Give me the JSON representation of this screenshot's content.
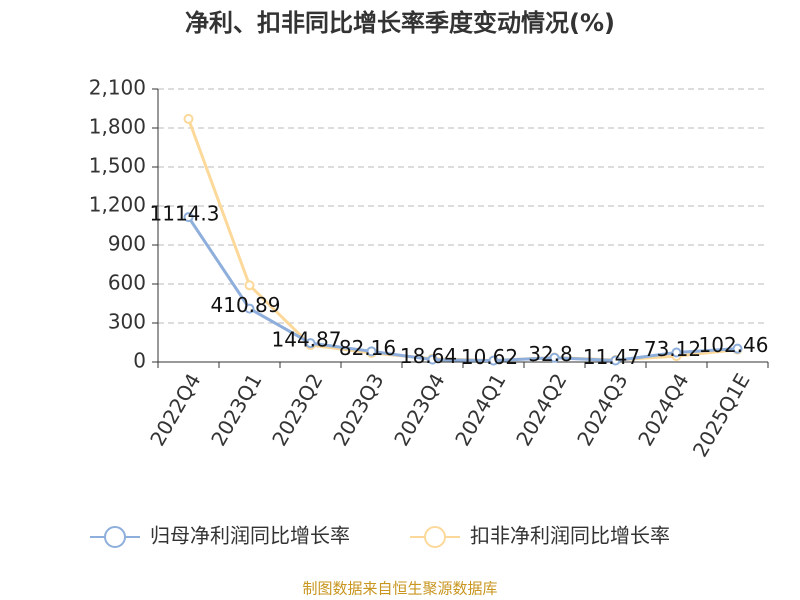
{
  "chart_data": {
    "type": "line",
    "title": "净利、扣非同比增长率季度变动情况(%)",
    "categories": [
      "2022Q4",
      "2023Q1",
      "2023Q2",
      "2023Q3",
      "2023Q4",
      "2024Q1",
      "2024Q2",
      "2024Q3",
      "2024Q4",
      "2025Q1E"
    ],
    "series": [
      {
        "name": "归母净利润同比增长率",
        "color": "#8eaedb",
        "values": [
          1114.3,
          410.89,
          144.87,
          82.16,
          18.64,
          10.62,
          32.8,
          11.47,
          73.12,
          102.46
        ]
      },
      {
        "name": "扣非净利润同比增长率",
        "color": "#fcd99a",
        "values": [
          1870,
          590,
          130,
          70,
          25,
          12,
          35,
          15,
          45,
          95
        ]
      }
    ],
    "ylim": [
      0,
      2100
    ],
    "yticks": [
      0,
      300,
      600,
      900,
      {
        "value": 1200,
        "label": "1,200"
      },
      {
        "value": 1500,
        "label": "1,500"
      },
      {
        "value": 1800,
        "label": "1,800"
      },
      {
        "value": 2100,
        "label": "2,100"
      }
    ],
    "grid": true,
    "source": "制图数据来自恒生聚源数据库"
  }
}
